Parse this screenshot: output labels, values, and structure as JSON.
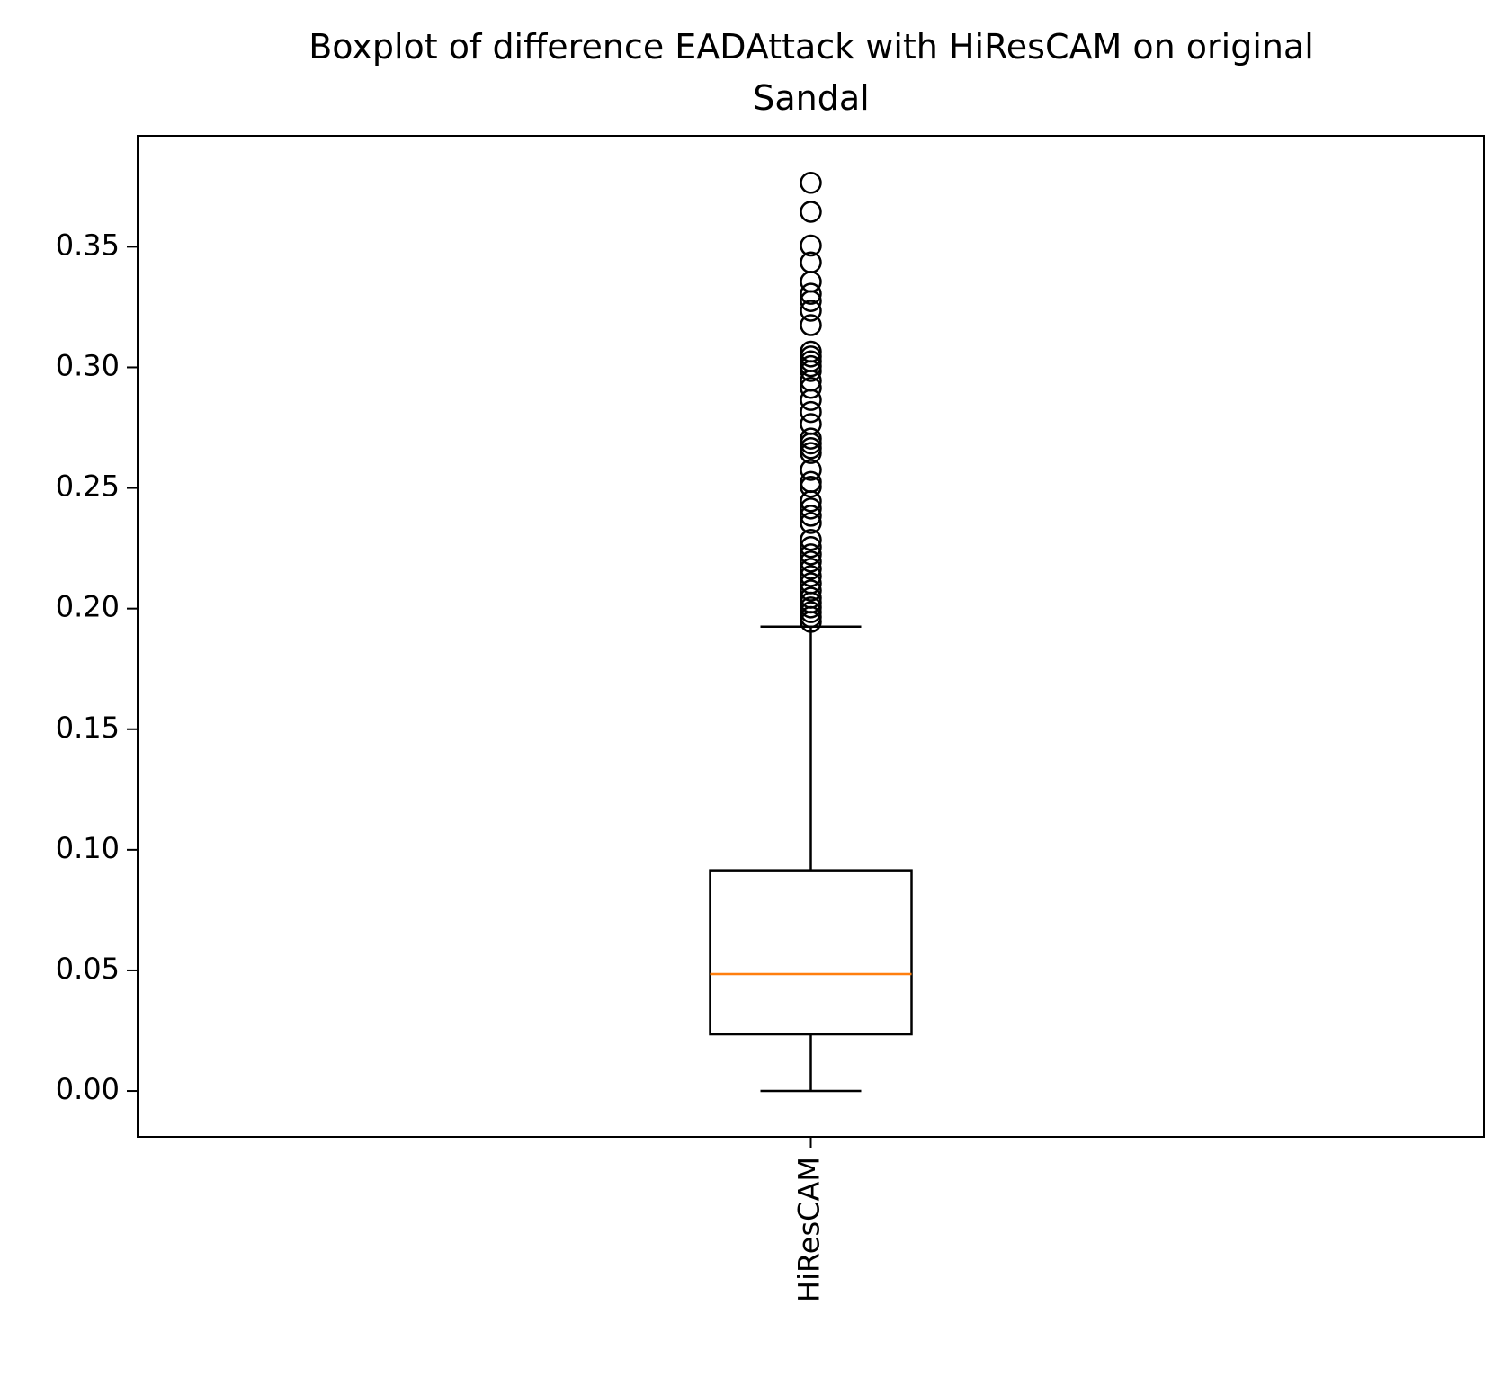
{
  "chart_data": {
    "type": "box",
    "title_line1": "Boxplot of difference EADAttack with HiResCAM on original",
    "title_line2": "Sandal",
    "xlabel": "",
    "ylabel": "",
    "categories": [
      "HiResCAM"
    ],
    "category_label_rotation": "vertical",
    "ylim": [
      -0.019,
      0.396
    ],
    "yticks": [
      0.0,
      0.05,
      0.1,
      0.15,
      0.2,
      0.25,
      0.3,
      0.35
    ],
    "ytick_labels": [
      "0.00",
      "0.05",
      "0.10",
      "0.15",
      "0.20",
      "0.25",
      "0.30",
      "0.35"
    ],
    "grid": false,
    "boxes": [
      {
        "name": "HiResCAM",
        "whisker_low": 0.0,
        "q1": 0.0235,
        "median": 0.0485,
        "q3": 0.0915,
        "whisker_high": 0.1925,
        "outliers": [
          0.1945,
          0.1965,
          0.1985,
          0.2005,
          0.2025,
          0.2045,
          0.2075,
          0.2105,
          0.2135,
          0.2165,
          0.2195,
          0.2225,
          0.2255,
          0.2285,
          0.2355,
          0.2385,
          0.2415,
          0.2445,
          0.2505,
          0.2525,
          0.2575,
          0.2645,
          0.2665,
          0.2685,
          0.2705,
          0.2765,
          0.2815,
          0.2865,
          0.2915,
          0.2945,
          0.2985,
          0.3005,
          0.3025,
          0.3045,
          0.3065,
          0.3175,
          0.3235,
          0.3275,
          0.3305,
          0.3355,
          0.3435,
          0.3505,
          0.3645,
          0.3765
        ]
      }
    ],
    "colors": {
      "box": "#000000",
      "median": "#ff7f0e",
      "outlier_edge": "#000000"
    }
  }
}
